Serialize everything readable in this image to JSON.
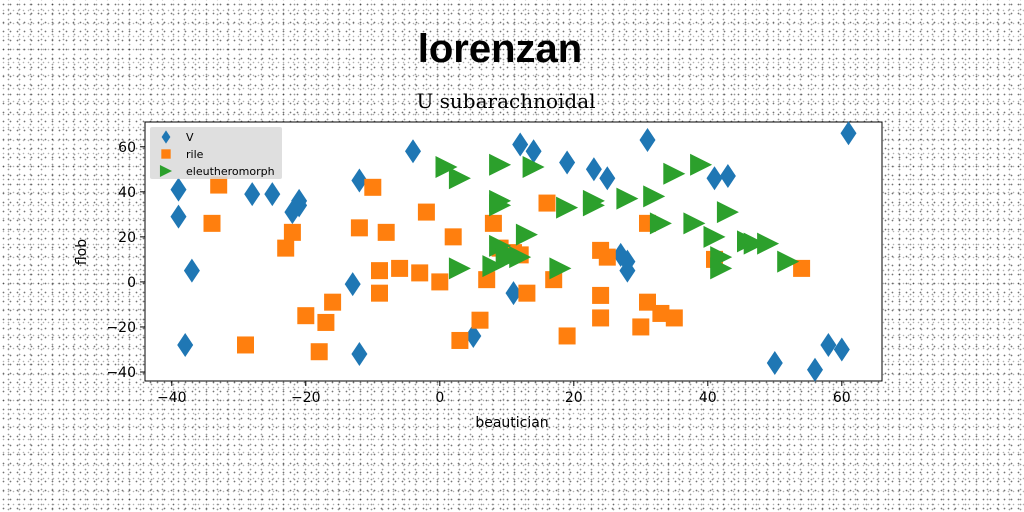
{
  "chart_data": {
    "type": "scatter",
    "title": "lorenzan",
    "subtitle": "U subarachnoidal",
    "xlabel": "beautician",
    "ylabel": "flob",
    "xlim": [
      -44,
      66
    ],
    "ylim": [
      -44,
      71
    ],
    "xticks": [
      -40,
      -20,
      0,
      20,
      40,
      60
    ],
    "yticks": [
      -40,
      -20,
      0,
      20,
      40,
      60
    ],
    "grid": false,
    "legend_position": "top-left",
    "series": [
      {
        "name": "V",
        "marker": "diamond",
        "color": "#1f77b4",
        "points": [
          [
            -39,
            41
          ],
          [
            -39,
            29
          ],
          [
            -37,
            5
          ],
          [
            -38,
            -28
          ],
          [
            -28,
            39
          ],
          [
            -25,
            39
          ],
          [
            -22,
            31
          ],
          [
            -21,
            34
          ],
          [
            -21,
            36
          ],
          [
            -12,
            45
          ],
          [
            -13,
            -1
          ],
          [
            -12,
            -32
          ],
          [
            -4,
            58
          ],
          [
            5,
            -24
          ],
          [
            11,
            -5
          ],
          [
            12,
            61
          ],
          [
            14,
            58
          ],
          [
            19,
            53
          ],
          [
            23,
            50
          ],
          [
            25,
            46
          ],
          [
            27,
            12
          ],
          [
            28,
            9
          ],
          [
            28,
            5
          ],
          [
            31,
            63
          ],
          [
            41,
            46
          ],
          [
            43,
            47
          ],
          [
            50,
            -36
          ],
          [
            56,
            -39
          ],
          [
            58,
            -28
          ],
          [
            60,
            -30
          ],
          [
            61,
            66
          ]
        ]
      },
      {
        "name": "rile",
        "marker": "square",
        "color": "#ff7f0e",
        "points": [
          [
            -33,
            43
          ],
          [
            -34,
            26
          ],
          [
            -29,
            -28
          ],
          [
            -23,
            15
          ],
          [
            -22,
            22
          ],
          [
            -20,
            -15
          ],
          [
            -18,
            -31
          ],
          [
            -17,
            -18
          ],
          [
            -16,
            -9
          ],
          [
            -12,
            24
          ],
          [
            -10,
            42
          ],
          [
            -9,
            5
          ],
          [
            -9,
            -5
          ],
          [
            -8,
            22
          ],
          [
            -6,
            6
          ],
          [
            -3,
            4
          ],
          [
            -2,
            31
          ],
          [
            0,
            0
          ],
          [
            2,
            20
          ],
          [
            3,
            -26
          ],
          [
            6,
            -17
          ],
          [
            7,
            1
          ],
          [
            8,
            26
          ],
          [
            9,
            15
          ],
          [
            11,
            13
          ],
          [
            12,
            12
          ],
          [
            13,
            -5
          ],
          [
            16,
            35
          ],
          [
            17,
            1
          ],
          [
            19,
            -24
          ],
          [
            24,
            -6
          ],
          [
            24,
            -16
          ],
          [
            24,
            14
          ],
          [
            25,
            11
          ],
          [
            30,
            -20
          ],
          [
            31,
            -9
          ],
          [
            31,
            26
          ],
          [
            33,
            -14
          ],
          [
            35,
            -16
          ],
          [
            41,
            10
          ],
          [
            54,
            6
          ]
        ]
      },
      {
        "name": "eleutheromorph",
        "marker": "triangle-right",
        "color": "#2ca02c",
        "points": [
          [
            1,
            51
          ],
          [
            3,
            46
          ],
          [
            3,
            6
          ],
          [
            8,
            7
          ],
          [
            9,
            36
          ],
          [
            9,
            34
          ],
          [
            9,
            16
          ],
          [
            9,
            52
          ],
          [
            10,
            13
          ],
          [
            10,
            10
          ],
          [
            12,
            11
          ],
          [
            13,
            21
          ],
          [
            14,
            51
          ],
          [
            18,
            6
          ],
          [
            19,
            33
          ],
          [
            23,
            36
          ],
          [
            23,
            34
          ],
          [
            28,
            37
          ],
          [
            32,
            38
          ],
          [
            33,
            26
          ],
          [
            35,
            48
          ],
          [
            38,
            26
          ],
          [
            39,
            52
          ],
          [
            41,
            20
          ],
          [
            42,
            11
          ],
          [
            42,
            6
          ],
          [
            43,
            31
          ],
          [
            46,
            18
          ],
          [
            47,
            17
          ],
          [
            49,
            17
          ],
          [
            52,
            9
          ]
        ]
      }
    ]
  }
}
